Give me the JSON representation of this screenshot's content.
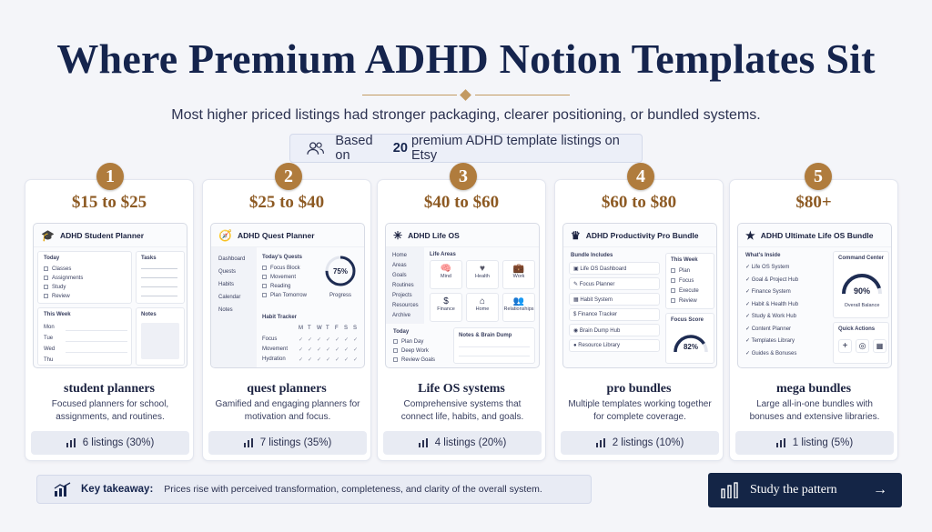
{
  "title": "Where Premium ADHD Notion Templates Sit",
  "subtitle": "Most higher priced listings had stronger packaging, clearer positioning, or bundled systems.",
  "basis": {
    "prefix": "Based on",
    "count": "20",
    "suffix": "premium ADHD template listings on Etsy"
  },
  "tiers": [
    {
      "number": "1",
      "price": "$15 to $25",
      "mock_title": "ADHD Student Planner",
      "category": "student planners",
      "description": "Focused planners for school, assignments, and routines.",
      "listings": "6 listings (30%)",
      "mock": {
        "today": "Today",
        "items": [
          "Classes",
          "Assignments",
          "Study",
          "Review"
        ],
        "tasks": "Tasks",
        "week": "This Week",
        "days": [
          "Mon",
          "Tue",
          "Wed",
          "Thu"
        ],
        "notes": "Notes"
      }
    },
    {
      "number": "2",
      "price": "$25 to $40",
      "mock_title": "ADHD Quest Planner",
      "category": "quest planners",
      "description": "Gamified and engaging planners for motivation and focus.",
      "listings": "7 listings (35%)",
      "mock": {
        "nav": [
          "Dashboard",
          "Quests",
          "Habits",
          "Calendar",
          "Notes"
        ],
        "quests_title": "Today's Quests",
        "quests": [
          "Focus Block",
          "Movement",
          "Reading",
          "Plan Tomorrow"
        ],
        "progress_value": "75%",
        "progress_label": "Progress",
        "progress_fraction": 0.75,
        "habit_title": "Habit Tracker",
        "habit_days": [
          "M",
          "T",
          "W",
          "T",
          "F",
          "S",
          "S"
        ],
        "habits": [
          "Focus",
          "Movement",
          "Hydration"
        ]
      }
    },
    {
      "number": "3",
      "price": "$40 to $60",
      "mock_title": "ADHD Life OS",
      "category": "Life OS systems",
      "description": "Comprehensive systems that connect life, habits, and goals.",
      "listings": "4 listings (20%)",
      "mock": {
        "nav": [
          "Home",
          "Areas",
          "Goals",
          "Routines",
          "Projects",
          "Resources",
          "Archive"
        ],
        "areas_title": "Life Areas",
        "areas": [
          "Mind",
          "Health",
          "Work",
          "Finance",
          "Home",
          "Relationships"
        ],
        "today": "Today",
        "today_items": [
          "Plan Day",
          "Deep Work",
          "Review Goals"
        ],
        "notes": "Notes & Brain Dump"
      }
    },
    {
      "number": "4",
      "price": "$60 to $80",
      "mock_title": "ADHD Productivity Pro Bundle",
      "category": "pro bundles",
      "description": "Multiple templates working together for complete coverage.",
      "listings": "2 listings (10%)",
      "mock": {
        "includes_title": "Bundle Includes",
        "includes": [
          "Life OS Dashboard",
          "Focus Planner",
          "Habit System",
          "Finance Tracker",
          "Brain Dump Hub",
          "Resource Library"
        ],
        "week_title": "This Week",
        "week": [
          "Plan",
          "Focus",
          "Execute",
          "Review"
        ],
        "score_title": "Focus Score",
        "score": "82%",
        "score_fraction": 0.82
      }
    },
    {
      "number": "5",
      "price": "$80+",
      "mock_title": "ADHD Ultimate Life OS Bundle",
      "category": "mega bundles",
      "description": "Large all-in-one bundles with bonuses and extensive libraries.",
      "listings": "1 listing (5%)",
      "mock": {
        "inside_title": "What's Inside",
        "inside": [
          "Life OS System",
          "Goal & Project Hub",
          "Finance System",
          "Habit & Health Hub",
          "Study & Work Hub",
          "Content Planner",
          "Templates Library",
          "Guides & Bonuses"
        ],
        "center_title": "Command Center",
        "balance": "90%",
        "balance_label": "Overall Balance",
        "balance_fraction": 0.9,
        "actions_title": "Quick Actions"
      }
    }
  ],
  "takeaway": {
    "label": "Key takeaway:",
    "text": "Prices rise with perceived transformation, completeness, and clarity of the overall system."
  },
  "cta": {
    "label": "Study the pattern"
  },
  "colors": {
    "navy": "#15244d",
    "gold": "#b07c3d",
    "price": "#8d5a23",
    "background": "#f4f5f9"
  }
}
